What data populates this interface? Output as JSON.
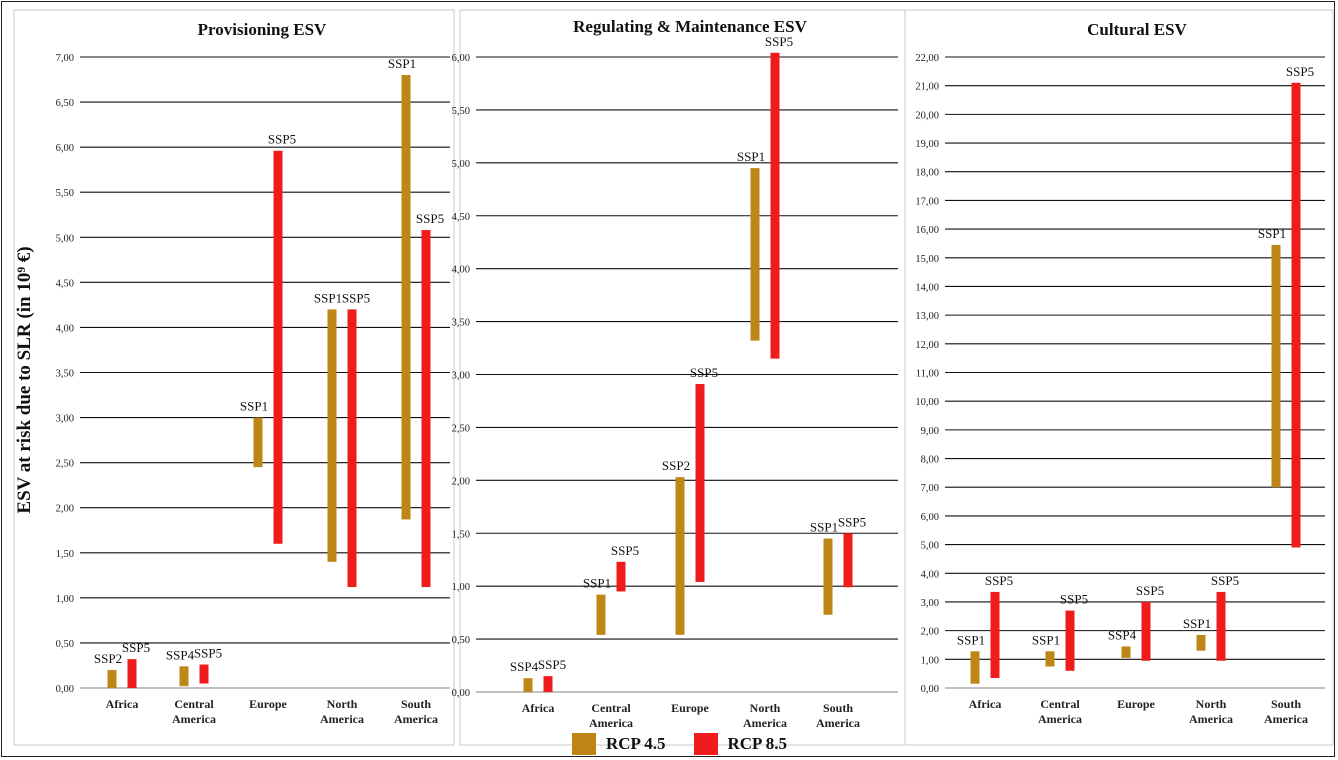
{
  "colors": {
    "rcp45": "#bd8617",
    "rcp85": "#ee1c1c"
  },
  "y_axis_label": "ESV at risk due to SLR (in 10⁹ €)",
  "legend": [
    {
      "label": "RCP 4.5",
      "color": "#bd8617"
    },
    {
      "label": "RCP 8.5",
      "color": "#ee1c1c"
    }
  ],
  "chart_data": [
    {
      "type": "bar",
      "title": "Provisioning ESV",
      "categories": [
        "Africa",
        "Central America",
        "Europe",
        "North America",
        "South America"
      ],
      "ylim": [
        0,
        7
      ],
      "ytick_step": 0.5,
      "grid": true,
      "series": [
        {
          "name": "RCP 4.5",
          "ranges": [
            {
              "low": 0.0,
              "high": 0.2,
              "label": "SSP2"
            },
            {
              "low": 0.02,
              "high": 0.24,
              "label": "SSP4"
            },
            {
              "low": 2.45,
              "high": 3.0,
              "label": "SSP1"
            },
            {
              "low": 1.4,
              "high": 4.2,
              "label": "SSP1"
            },
            {
              "low": 1.87,
              "high": 6.8,
              "label": "SSP1"
            }
          ]
        },
        {
          "name": "RCP 8.5",
          "ranges": [
            {
              "low": 0.0,
              "high": 0.32,
              "label": "SSP5"
            },
            {
              "low": 0.05,
              "high": 0.26,
              "label": "SSP5"
            },
            {
              "low": 1.6,
              "high": 5.96,
              "label": "SSP5"
            },
            {
              "low": 1.12,
              "high": 4.2,
              "label": "SSP5"
            },
            {
              "low": 1.12,
              "high": 5.08,
              "label": "SSP5"
            }
          ]
        }
      ]
    },
    {
      "type": "bar",
      "title": "Regulating & Maintenance ESV",
      "categories": [
        "Africa",
        "Central America",
        "Europe",
        "North America",
        "South America"
      ],
      "ylim": [
        0,
        6
      ],
      "ytick_step": 0.5,
      "grid": true,
      "series": [
        {
          "name": "RCP 4.5",
          "ranges": [
            {
              "low": 0.0,
              "high": 0.13,
              "label": "SSP4"
            },
            {
              "low": 0.54,
              "high": 0.92,
              "label": "SSP1"
            },
            {
              "low": 0.54,
              "high": 2.03,
              "label": "SSP2"
            },
            {
              "low": 3.32,
              "high": 4.95,
              "label": "SSP1"
            },
            {
              "low": 0.73,
              "high": 1.45,
              "label": "SSP1"
            }
          ]
        },
        {
          "name": "RCP 8.5",
          "ranges": [
            {
              "low": 0.0,
              "high": 0.15,
              "label": "SSP5"
            },
            {
              "low": 0.95,
              "high": 1.23,
              "label": "SSP5"
            },
            {
              "low": 1.04,
              "high": 2.91,
              "label": "SSP5"
            },
            {
              "low": 3.15,
              "high": 6.04,
              "label": "SSP5"
            },
            {
              "low": 0.99,
              "high": 1.5,
              "label": "SSP5"
            }
          ]
        }
      ]
    },
    {
      "type": "bar",
      "title": "Cultural ESV",
      "categories": [
        "Africa",
        "Central America",
        "Europe",
        "North America",
        "South America"
      ],
      "ylim": [
        0,
        22
      ],
      "ytick_step": 1,
      "grid": true,
      "series": [
        {
          "name": "RCP 4.5",
          "ranges": [
            {
              "low": 0.15,
              "high": 1.28,
              "label": "SSP1"
            },
            {
              "low": 0.75,
              "high": 1.28,
              "label": "SSP1"
            },
            {
              "low": 1.05,
              "high": 1.45,
              "label": "SSP4"
            },
            {
              "low": 1.3,
              "high": 1.85,
              "label": "SSP1"
            },
            {
              "low": 7.0,
              "high": 15.45,
              "label": "SSP1"
            }
          ]
        },
        {
          "name": "RCP 8.5",
          "ranges": [
            {
              "low": 0.35,
              "high": 3.35,
              "label": "SSP5"
            },
            {
              "low": 0.6,
              "high": 2.7,
              "label": "SSP5"
            },
            {
              "low": 0.95,
              "high": 3.0,
              "label": "SSP5"
            },
            {
              "low": 0.95,
              "high": 3.35,
              "label": "SSP5"
            },
            {
              "low": 4.9,
              "high": 21.1,
              "label": "SSP5"
            }
          ]
        }
      ]
    }
  ]
}
